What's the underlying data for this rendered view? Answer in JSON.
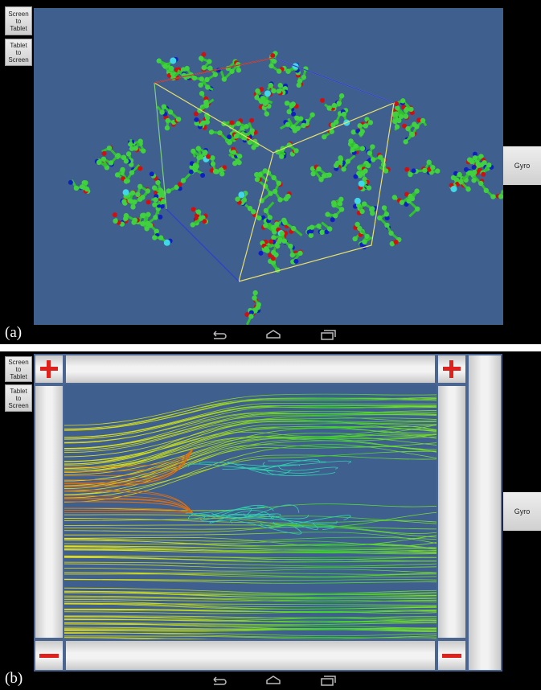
{
  "panel_a": {
    "label": "(a)",
    "buttons": [
      "Screen to Tablet",
      "Tablet to Screen"
    ],
    "gyro": "Gyro"
  },
  "panel_b": {
    "label": "(b)",
    "buttons": [
      "Screen to Tablet",
      "Tablet to Screen"
    ],
    "gyro": "Gyro"
  }
}
